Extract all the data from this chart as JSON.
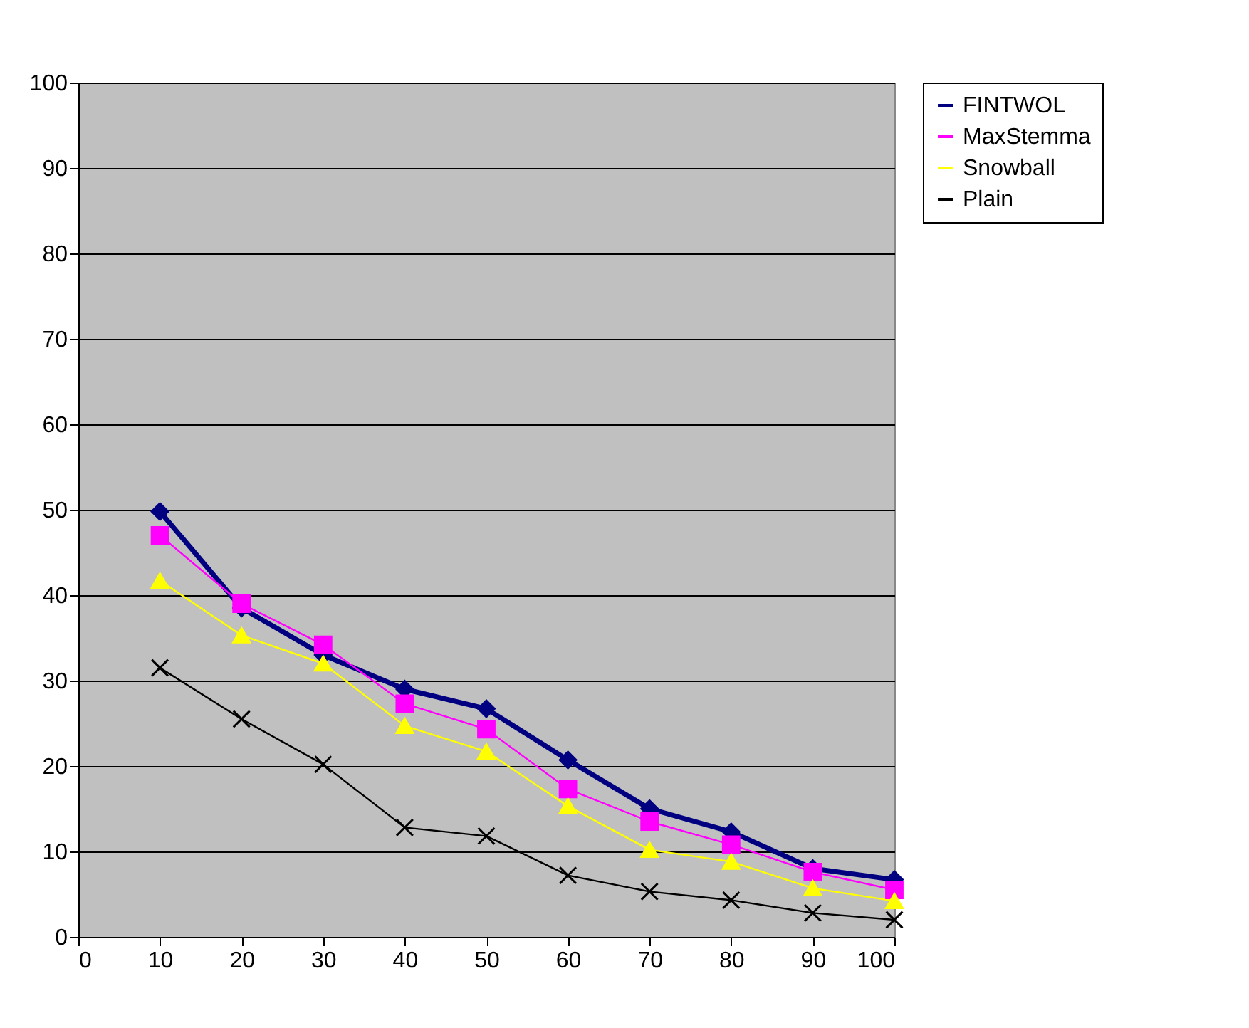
{
  "chart_data": {
    "type": "line",
    "x": [
      10,
      20,
      30,
      40,
      50,
      60,
      70,
      80,
      90,
      100
    ],
    "series": [
      {
        "name": "FINTWOL",
        "color": "#000080",
        "marker": "diamond",
        "values": [
          49.8,
          38.5,
          33,
          29,
          26.7,
          20.7,
          15,
          12.3,
          8,
          6.7
        ]
      },
      {
        "name": "MaxStemma",
        "color": "#ff00ff",
        "marker": "square",
        "values": [
          47,
          39,
          34.2,
          27.3,
          24.3,
          17.3,
          13.5,
          10.8,
          7.6,
          5.5
        ]
      },
      {
        "name": "Snowball",
        "color": "#ffff00",
        "marker": "triangle",
        "values": [
          41.7,
          35.3,
          32,
          24.7,
          21.7,
          15.3,
          10.2,
          8.8,
          5.7,
          4.2
        ]
      },
      {
        "name": "Plain",
        "color": "#000000",
        "marker": "cross",
        "values": [
          31.5,
          25.5,
          20.2,
          12.8,
          11.8,
          7.2,
          5.3,
          4.3,
          2.8,
          2
        ]
      }
    ],
    "xlim": [
      0,
      100
    ],
    "xticks": [
      0,
      10,
      20,
      30,
      40,
      50,
      60,
      70,
      80,
      90,
      100
    ],
    "ylim": [
      0,
      100
    ],
    "yticks": [
      0,
      10,
      20,
      30,
      40,
      50,
      60,
      70,
      80,
      90,
      100
    ],
    "grid": "y",
    "legend": "right"
  }
}
